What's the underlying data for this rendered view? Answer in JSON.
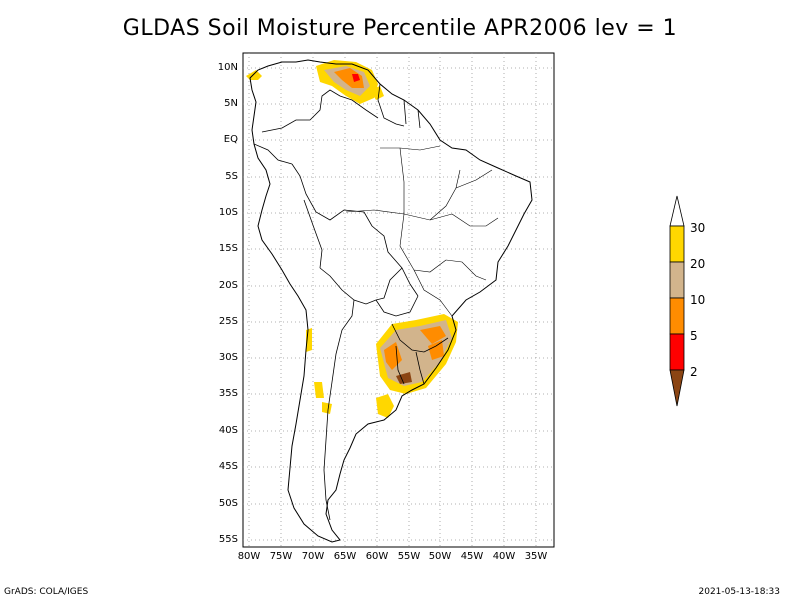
{
  "title": "GLDAS Soil Moisture Percentile APR2006 lev = 1",
  "lat_labels": [
    "10N",
    "5N",
    "EQ",
    "5S",
    "10S",
    "15S",
    "20S",
    "25S",
    "30S",
    "35S",
    "40S",
    "45S",
    "50S",
    "55S"
  ],
  "lon_labels": [
    "80W",
    "75W",
    "70W",
    "65W",
    "60W",
    "55W",
    "50W",
    "45W",
    "40W",
    "35W"
  ],
  "legend": {
    "labels": [
      "30",
      "20",
      "10",
      "5",
      "2"
    ],
    "colors": {
      "above_30": "#ffffff",
      "20_30": "#ffd700",
      "10_20": "#d2b48c",
      "5_10": "#ff8c00",
      "2_5": "#ff0000",
      "below_2": "#8b4513"
    }
  },
  "footer": {
    "left": "GrADS: COLA/IGES",
    "right": "2021-05-13-18:33"
  }
}
